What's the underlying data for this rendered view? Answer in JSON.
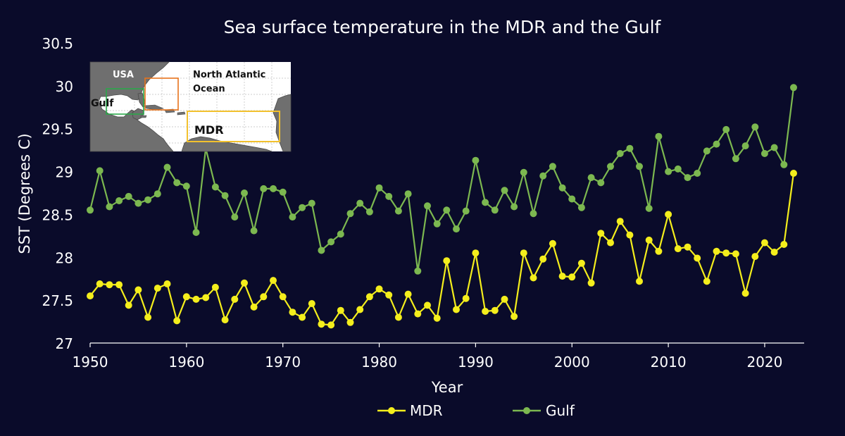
{
  "chart_data": {
    "type": "line",
    "title": "Sea surface temperature in the MDR and the Gulf",
    "xlabel": "Year",
    "ylabel": "SST (Degrees C)",
    "xlim": [
      1950,
      2023
    ],
    "ylim": [
      27,
      30.5
    ],
    "xticks": [
      "1950",
      "1960",
      "1970",
      "1980",
      "1990",
      "2000",
      "2010",
      "2020"
    ],
    "yticks": [
      "27",
      "27.5",
      "28",
      "28.5",
      "29",
      "29.5",
      "30",
      "30.5"
    ],
    "x": [
      1950,
      1951,
      1952,
      1953,
      1954,
      1955,
      1956,
      1957,
      1958,
      1959,
      1960,
      1961,
      1962,
      1963,
      1964,
      1965,
      1966,
      1967,
      1968,
      1969,
      1970,
      1971,
      1972,
      1973,
      1974,
      1975,
      1976,
      1977,
      1978,
      1979,
      1980,
      1981,
      1982,
      1983,
      1984,
      1985,
      1986,
      1987,
      1988,
      1989,
      1990,
      1991,
      1992,
      1993,
      1994,
      1995,
      1996,
      1997,
      1998,
      1999,
      2000,
      2001,
      2002,
      2003,
      2004,
      2005,
      2006,
      2007,
      2008,
      2009,
      2010,
      2011,
      2012,
      2013,
      2014,
      2015,
      2016,
      2017,
      2018,
      2019,
      2020,
      2021,
      2022,
      2023
    ],
    "series": [
      {
        "name": "MDR",
        "color": "#f4ee1c",
        "values": [
          27.55,
          27.69,
          27.68,
          27.68,
          27.44,
          27.62,
          27.3,
          27.64,
          27.69,
          27.26,
          27.54,
          27.51,
          27.53,
          27.65,
          27.27,
          27.51,
          27.7,
          27.42,
          27.54,
          27.73,
          27.54,
          27.36,
          27.3,
          27.46,
          27.22,
          27.21,
          27.38,
          27.24,
          27.39,
          27.54,
          27.63,
          27.56,
          27.3,
          27.57,
          27.34,
          27.44,
          27.29,
          27.96,
          27.39,
          27.52,
          28.05,
          27.37,
          27.38,
          27.51,
          27.31,
          28.05,
          27.76,
          27.98,
          28.16,
          27.78,
          27.77,
          27.93,
          27.7,
          28.28,
          28.17,
          28.42,
          28.26,
          27.72,
          28.2,
          28.07,
          28.5,
          28.1,
          28.12,
          27.99,
          27.72,
          28.07,
          28.05,
          28.04,
          27.58,
          28.01,
          28.17,
          28.06,
          28.15,
          28.98
        ]
      },
      {
        "name": "Gulf",
        "color": "#7cb850",
        "values": [
          28.55,
          29.01,
          28.59,
          28.66,
          28.71,
          28.63,
          28.67,
          28.74,
          29.05,
          28.87,
          28.83,
          28.29,
          29.27,
          28.82,
          28.72,
          28.47,
          28.75,
          28.31,
          28.8,
          28.8,
          28.76,
          28.47,
          28.58,
          28.63,
          28.08,
          28.18,
          28.27,
          28.51,
          28.63,
          28.53,
          28.81,
          28.71,
          28.54,
          28.74,
          27.84,
          28.6,
          28.39,
          28.55,
          28.33,
          28.54,
          29.13,
          28.64,
          28.55,
          28.78,
          28.59,
          28.99,
          28.51,
          28.95,
          29.06,
          28.81,
          28.68,
          28.58,
          28.93,
          28.87,
          29.06,
          29.21,
          29.27,
          29.06,
          28.57,
          29.41,
          29.0,
          29.03,
          28.93,
          28.98,
          29.24,
          29.32,
          29.49,
          29.15,
          29.3,
          29.52,
          29.21,
          29.28,
          29.08,
          29.98
        ]
      }
    ],
    "legend": {
      "position": "bottom",
      "labels": [
        "MDR",
        "Gulf"
      ]
    },
    "inset_map": {
      "labels": {
        "usa": "USA",
        "ocean_line1": "North Atlantic",
        "ocean_line2": "Ocean",
        "gulf": "Gulf",
        "mdr": "MDR"
      },
      "colors": {
        "land": "#6f6f6f",
        "sea": "#ffffff",
        "gulf_box": "#2aa84a",
        "east_box": "#e8731c",
        "mdr_box": "#f2c12e"
      }
    }
  }
}
